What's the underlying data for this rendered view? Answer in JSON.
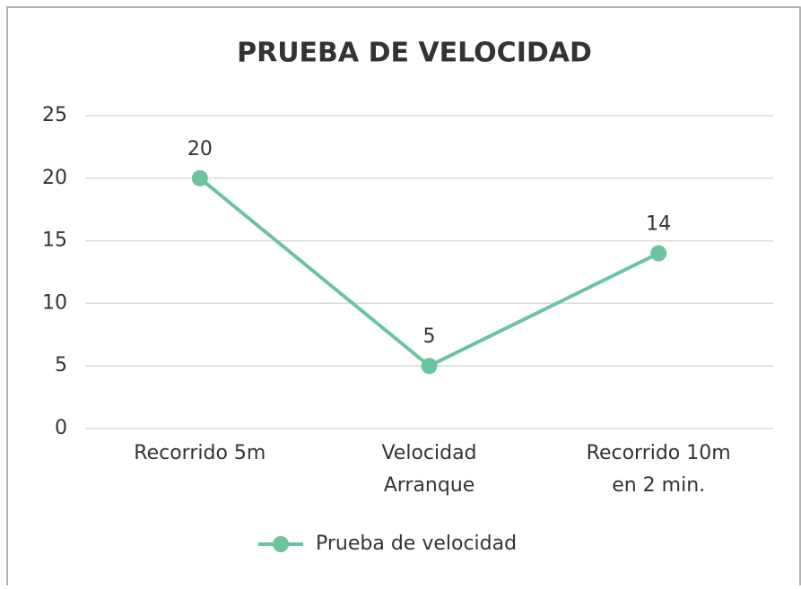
{
  "chart_data": {
    "type": "line",
    "title": "PRUEBA DE VELOCIDAD",
    "categories": [
      "Recorrido 5m",
      "Velocidad Arranque",
      "Recorrido 10m en 2 min."
    ],
    "series": [
      {
        "name": "Prueba de velocidad",
        "color": "#6cc3a0",
        "values": [
          20,
          5,
          14
        ]
      }
    ],
    "ylim": [
      0,
      25
    ],
    "yticks": [
      0,
      5,
      10,
      15,
      20,
      25
    ],
    "grid": true,
    "legend": "bottom",
    "data_labels": true
  }
}
